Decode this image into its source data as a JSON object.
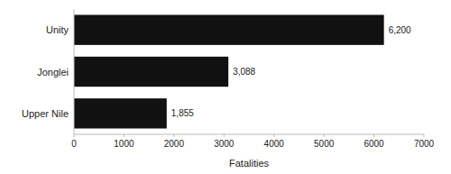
{
  "chart_data": {
    "type": "bar",
    "orientation": "horizontal",
    "categories": [
      "Upper Nile",
      "Jonglei",
      "Unity"
    ],
    "values": [
      1855,
      3088,
      6200
    ],
    "value_labels": [
      "1,855",
      "3,088",
      "6,200"
    ],
    "data_labels": true,
    "color": "#111111",
    "xlabel": "Fatalities",
    "xlim": [
      0,
      7000
    ],
    "xticks": [
      0,
      1000,
      2000,
      3000,
      4000,
      5000,
      6000,
      7000
    ],
    "grid": false
  }
}
